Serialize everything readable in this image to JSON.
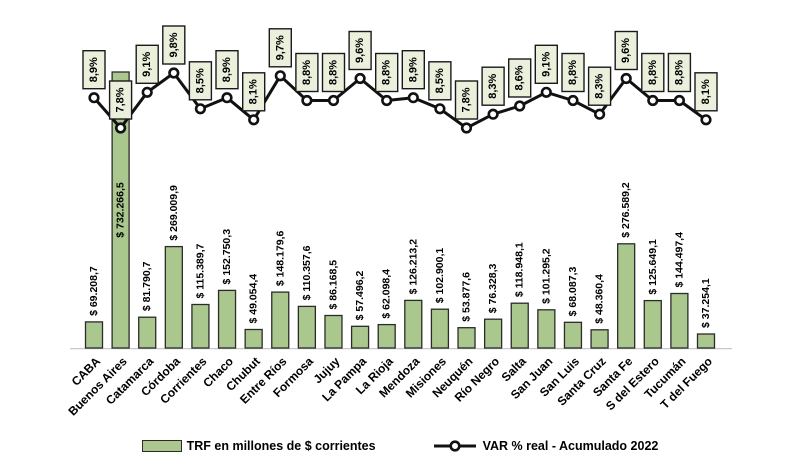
{
  "chart_data": {
    "type": "bar-line-combo",
    "title": "",
    "categories": [
      "CABA",
      "Buenos Aires",
      "Catamarca",
      "Córdoba",
      "Corrientes",
      "Chaco",
      "Chubut",
      "Entre Ríos",
      "Formosa",
      "Jujuy",
      "La Pampa",
      "La Rioja",
      "Mendoza",
      "Misiones",
      "Neuquén",
      "Río Negro",
      "Salta",
      "San Juan",
      "San Luis",
      "Santa Cruz",
      "Santa Fe",
      "S del Estero",
      "Tucumán",
      "T del Fuego"
    ],
    "series": [
      {
        "name": "TRF en millones de $ corrientes",
        "type": "bar",
        "values": [
          69208.7,
          732266.5,
          81790.7,
          269009.9,
          115389.7,
          152750.3,
          49054.4,
          148179.6,
          110357.6,
          86168.5,
          57496.2,
          62098.4,
          126213.2,
          102900.1,
          53877.6,
          76328.3,
          118948.1,
          101295.2,
          68087.3,
          48360.4,
          276589.2,
          125649.1,
          144497.4,
          37254.1
        ],
        "labels": [
          "$ 69.208,7",
          "$ 732.266,5",
          "$ 81.790,7",
          "$ 269.009,9",
          "$ 115.389,7",
          "$ 152.750,3",
          "$ 49.054,4",
          "$ 148.179,6",
          "$ 110.357,6",
          "$ 86.168,5",
          "$ 57.496,2",
          "$ 62.098,4",
          "$ 126.213,2",
          "$ 102.900,1",
          "$ 53.877,6",
          "$ 76.328,3",
          "$ 118.948,1",
          "$ 101.295,2",
          "$ 68.087,3",
          "$ 48.360,4",
          "$ 276.589,2",
          "$ 125.649,1",
          "$ 144.497,4",
          "$ 37.254,1"
        ]
      },
      {
        "name": "VAR % real - Acumulado 2022",
        "type": "line",
        "values": [
          8.9,
          7.8,
          9.1,
          9.8,
          8.5,
          8.9,
          8.1,
          9.7,
          8.8,
          8.8,
          9.6,
          8.8,
          8.9,
          8.5,
          7.8,
          8.3,
          8.6,
          9.1,
          8.8,
          8.3,
          9.6,
          8.8,
          8.8,
          8.1
        ],
        "labels": [
          "8,9%",
          "7,8%",
          "9,1%",
          "9,8%",
          "8,5%",
          "8,9%",
          "8,1%",
          "9,7%",
          "8,8%",
          "8,8%",
          "9,6%",
          "8,8%",
          "8,9%",
          "8,5%",
          "7,8%",
          "8,3%",
          "8,6%",
          "9,1%",
          "8,8%",
          "8,3%",
          "9,6%",
          "8,8%",
          "8,8%",
          "8,1%"
        ],
        "axis_range": [
          7.8,
          9.8
        ]
      }
    ],
    "grid": false,
    "legend_position": "bottom",
    "value_labels_shown": true,
    "xlabel": "",
    "ylabel": ""
  },
  "legend": {
    "bar_label": "TRF en millones de $ corrientes",
    "line_label": "VAR % real - Acumulado 2022"
  },
  "colors": {
    "bar_fill": "#aac78e",
    "bar_border": "#2b2b2b",
    "label_box_fill": "#eaf0dc",
    "label_box_border": "#1a1a1a",
    "line": "#111111",
    "marker_fill": "#ffffff",
    "axis_line": "#c8c8c8",
    "text": "#000000",
    "background": "#ffffff"
  }
}
